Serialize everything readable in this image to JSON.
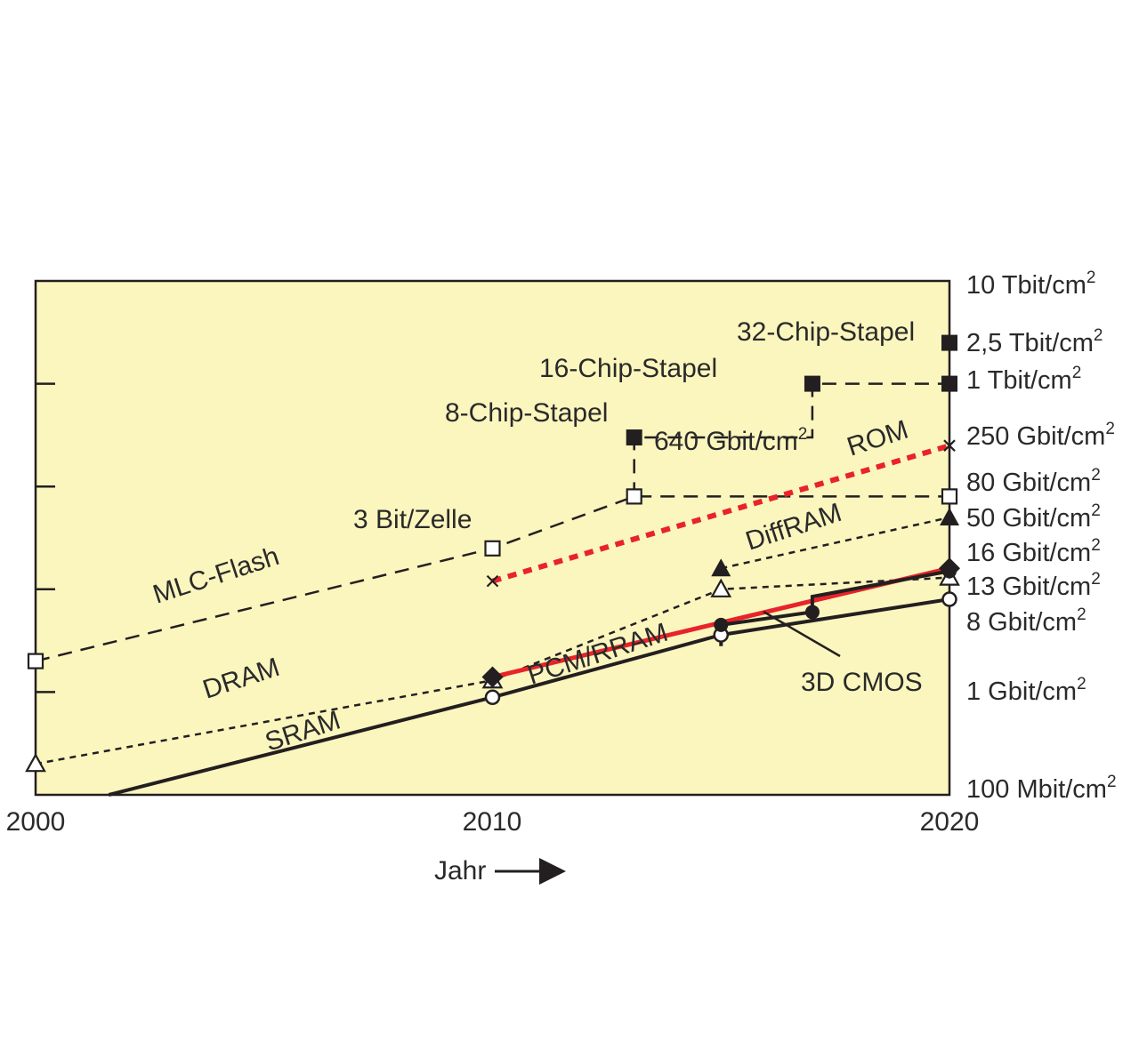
{
  "chart_data": {
    "type": "line",
    "x_axis": {
      "label": "Jahr",
      "range": [
        2000,
        2020
      ],
      "ticks": [
        "2000",
        "2010",
        "2020"
      ]
    },
    "y_axis": {
      "scale": "log",
      "tick_labels": [
        {
          "label": "10 Tbit/cm",
          "sup": "2",
          "value_gbit": 10000
        },
        {
          "label": "2,5 Tbit/cm",
          "sup": "2",
          "value_gbit": 2500
        },
        {
          "label": "1 Tbit/cm",
          "sup": "2",
          "value_gbit": 1000
        },
        {
          "label": "250 Gbit/cm",
          "sup": "2",
          "value_gbit": 250
        },
        {
          "label": "80 Gbit/cm",
          "sup": "2",
          "value_gbit": 80
        },
        {
          "label": "50 Gbit/cm",
          "sup": "2",
          "value_gbit": 50
        },
        {
          "label": "16 Gbit/cm",
          "sup": "2",
          "value_gbit": 16
        },
        {
          "label": "13 Gbit/cm",
          "sup": "2",
          "value_gbit": 13
        },
        {
          "label": "8 Gbit/cm",
          "sup": "2",
          "value_gbit": 8
        },
        {
          "label": "1 Gbit/cm",
          "sup": "2",
          "value_gbit": 1
        },
        {
          "label": "100 Mbit/cm",
          "sup": "2",
          "value_gbit": 0.1
        }
      ]
    },
    "grid": false,
    "colors": {
      "plot_background": "#fbf6be",
      "line": "#231f20",
      "accent_red": "#e8232a",
      "outer_background": "#ffffff"
    },
    "series": [
      {
        "name": "SRAM",
        "style": "solid",
        "color": "#231f20",
        "marker": "circle-open",
        "points": [
          [
            2001.6,
            0.1
          ],
          [
            2010,
            0.89
          ],
          [
            2015,
            3.6
          ],
          [
            2020,
            8
          ]
        ]
      },
      {
        "name": "DRAM",
        "style": "dotted",
        "color": "#231f20",
        "marker": "triangle-open",
        "points": [
          [
            2000,
            0.2
          ],
          [
            2010,
            1.3
          ],
          [
            2015,
            10
          ],
          [
            2020,
            13
          ]
        ]
      },
      {
        "name": "MLC-Flash",
        "style": "dashed",
        "color": "#231f20",
        "marker": "square-open",
        "points": [
          [
            2000,
            2.0
          ],
          [
            2010,
            25
          ],
          [
            2013.1,
            80
          ],
          [
            2020,
            80
          ]
        ]
      },
      {
        "name": "ROM",
        "style": "dotted-thick",
        "color": "#e8232a",
        "marker": "cross",
        "points": [
          [
            2010,
            12
          ],
          [
            2020,
            250
          ]
        ]
      },
      {
        "name": "PCM/RRAM",
        "style": "solid-thick",
        "color": "#e8232a",
        "marker": "diamond",
        "points": [
          [
            2010,
            1.4
          ],
          [
            2020,
            16
          ]
        ]
      },
      {
        "name": "DiffRAM",
        "style": "dotted",
        "color": "#231f20",
        "marker": "triangle-filled",
        "points": [
          [
            2015,
            16
          ],
          [
            2020,
            50
          ]
        ]
      },
      {
        "name": "3D CMOS",
        "style": "solid",
        "color": "#231f20",
        "marker": "circle-filled",
        "points": [
          [
            2015,
            2.8
          ],
          [
            2015,
            4.5
          ],
          [
            2017,
            6
          ],
          [
            2017,
            8.5
          ],
          [
            2020,
            15
          ]
        ]
      },
      {
        "name": "Chip-Stapel",
        "style": "dashed",
        "color": "#231f20",
        "marker": "square-filled",
        "points": [
          [
            2013.1,
            80
          ],
          [
            2013.1,
            300
          ],
          [
            2017,
            300
          ],
          [
            2017,
            1000
          ],
          [
            2020,
            1000
          ]
        ]
      }
    ],
    "extra_points": [
      {
        "marker": "square-filled",
        "x": 2020,
        "y": 2500
      }
    ],
    "annotations": [
      {
        "text": "SRAM"
      },
      {
        "text": "DRAM"
      },
      {
        "text": "MLC-Flash"
      },
      {
        "text": "3 Bit/Zelle"
      },
      {
        "text": "8-Chip-Stapel"
      },
      {
        "text": "16-Chip-Stapel"
      },
      {
        "text": "32-Chip-Stapel"
      },
      {
        "text": "640 Gbit/cm",
        "sup": "2"
      },
      {
        "text": "ROM"
      },
      {
        "text": "DiffRAM"
      },
      {
        "text": "PCM/RRAM"
      },
      {
        "text": "3D CMOS"
      }
    ]
  }
}
